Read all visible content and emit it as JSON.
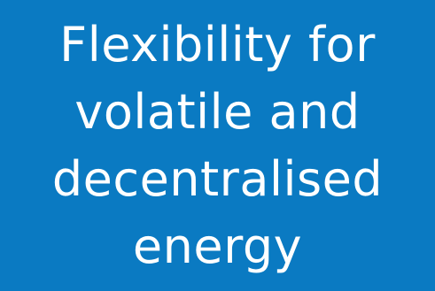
{
  "colors": {
    "background": "#0a7ac2",
    "text": "#ffffff"
  },
  "headline": {
    "lines": [
      "Flexibility for",
      "volatile and",
      "decentralised",
      "energy"
    ]
  }
}
